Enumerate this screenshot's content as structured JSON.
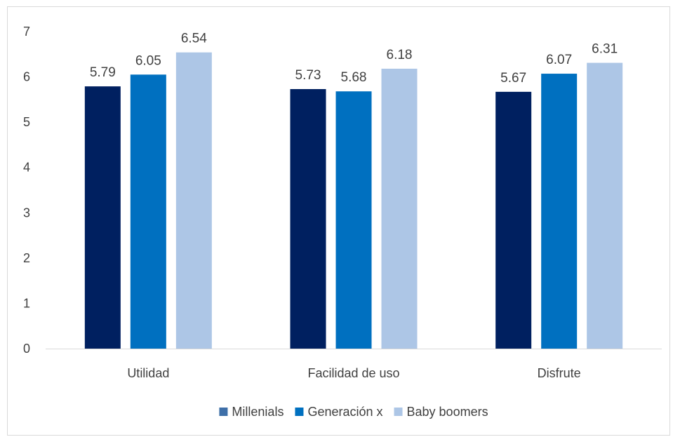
{
  "chart_data": {
    "type": "bar",
    "title": "",
    "xlabel": "",
    "ylabel": "",
    "categories": [
      "Utilidad",
      "Facilidad de uso",
      "Disfrute"
    ],
    "series": [
      {
        "name": "Millenials",
        "color": "#002060",
        "legend_color": "#3e6fa8",
        "values": [
          5.79,
          5.73,
          5.67
        ],
        "labels": [
          "5.79",
          "5.73",
          "5.67"
        ]
      },
      {
        "name": "Generación x",
        "color": "#0070c0",
        "legend_color": "#0070c0",
        "values": [
          6.05,
          5.68,
          6.07
        ],
        "labels": [
          "6.05",
          "5.68",
          "6.07"
        ]
      },
      {
        "name": "Baby boomers",
        "color": "#adc6e6",
        "legend_color": "#adc6e6",
        "values": [
          6.54,
          6.18,
          6.31
        ],
        "labels": [
          "6.54",
          "6.18",
          "6.31"
        ]
      }
    ],
    "ylim": [
      0,
      7
    ],
    "yticks": [
      "0",
      "1",
      "2",
      "3",
      "4",
      "5",
      "6",
      "7"
    ],
    "grid": false,
    "legend_position": "bottom"
  }
}
